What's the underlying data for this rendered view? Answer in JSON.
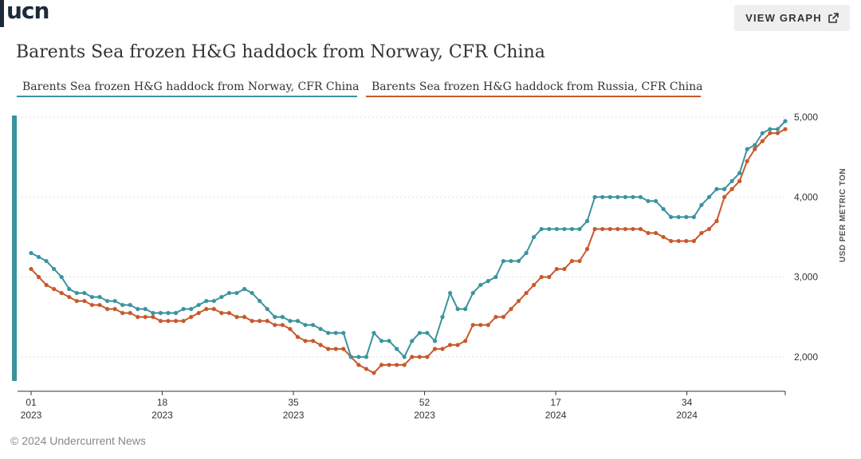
{
  "brand": {
    "logo_text": "ucn"
  },
  "header": {
    "view_graph_label": "VIEW GRAPH",
    "view_graph_icon": "external-link-icon"
  },
  "colors": {
    "norway": "#3b939d",
    "russia": "#c8582a",
    "grid": "#dddddd",
    "axis": "#333333"
  },
  "footer": {
    "copyright": "© 2024 Undercurrent News"
  },
  "chart_data": {
    "type": "line",
    "title": "Barents Sea frozen H&G haddock from Norway, CFR China",
    "ylabel": "USD PER METRIC TON",
    "ylim": [
      1700,
      5000
    ],
    "yticks": [
      {
        "value": 2000,
        "label": "2,000"
      },
      {
        "value": 3000,
        "label": "3,000"
      },
      {
        "value": 4000,
        "label": "4,000"
      },
      {
        "value": 5000,
        "label": "5,000"
      }
    ],
    "xlim": [
      0,
      115
    ],
    "xticks": [
      {
        "index": 0,
        "week": "01",
        "year": "2023"
      },
      {
        "index": 20,
        "week": "18",
        "year": "2023"
      },
      {
        "index": 40,
        "week": "35",
        "year": "2023"
      },
      {
        "index": 60,
        "week": "52",
        "year": "2023"
      },
      {
        "index": 80,
        "week": "17",
        "year": "2024"
      },
      {
        "index": 100,
        "week": "34",
        "year": "2024"
      }
    ],
    "series": [
      {
        "name": "Barents Sea frozen H&G haddock from Norway, CFR China",
        "values": [
          3300,
          3250,
          3200,
          3100,
          3000,
          2850,
          2800,
          2800,
          2750,
          2750,
          2700,
          2700,
          2650,
          2650,
          2600,
          2600,
          2550,
          2550,
          2550,
          2550,
          2600,
          2600,
          2650,
          2700,
          2700,
          2750,
          2800,
          2800,
          2850,
          2800,
          2700,
          2600,
          2500,
          2500,
          2450,
          2450,
          2400,
          2400,
          2350,
          2300,
          2300,
          2300,
          2000,
          2000,
          2000,
          2300,
          2200,
          2200,
          2100,
          2000,
          2200,
          2300,
          2300,
          2200,
          2500,
          2800,
          2600,
          2600,
          2800,
          2900,
          2950,
          3000,
          3200,
          3200,
          3200,
          3300,
          3500,
          3600,
          3600,
          3600,
          3600,
          3600,
          3600,
          3700,
          4000,
          4000,
          4000,
          4000,
          4000,
          4000,
          4000,
          3950,
          3950,
          3850,
          3750,
          3750,
          3750,
          3750,
          3900,
          4000,
          4100,
          4100,
          4200,
          4300,
          4600,
          4650,
          4800,
          4850,
          4850,
          4950
        ]
      },
      {
        "name": "Barents Sea frozen H&G haddock from Russia, CFR China",
        "values": [
          3100,
          3000,
          2900,
          2850,
          2800,
          2750,
          2700,
          2700,
          2650,
          2650,
          2600,
          2600,
          2550,
          2550,
          2500,
          2500,
          2500,
          2450,
          2450,
          2450,
          2450,
          2500,
          2550,
          2600,
          2600,
          2550,
          2550,
          2500,
          2500,
          2450,
          2450,
          2450,
          2400,
          2400,
          2350,
          2250,
          2200,
          2200,
          2150,
          2100,
          2100,
          2100,
          2000,
          1900,
          1850,
          1800,
          1900,
          1900,
          1900,
          1900,
          2000,
          2000,
          2000,
          2100,
          2100,
          2150,
          2150,
          2200,
          2400,
          2400,
          2400,
          2500,
          2500,
          2600,
          2700,
          2800,
          2900,
          3000,
          3000,
          3100,
          3100,
          3200,
          3200,
          3350,
          3600,
          3600,
          3600,
          3600,
          3600,
          3600,
          3600,
          3550,
          3550,
          3500,
          3450,
          3450,
          3450,
          3450,
          3550,
          3600,
          3700,
          4000,
          4100,
          4200,
          4450,
          4600,
          4700,
          4800,
          4800,
          4850
        ]
      }
    ]
  }
}
